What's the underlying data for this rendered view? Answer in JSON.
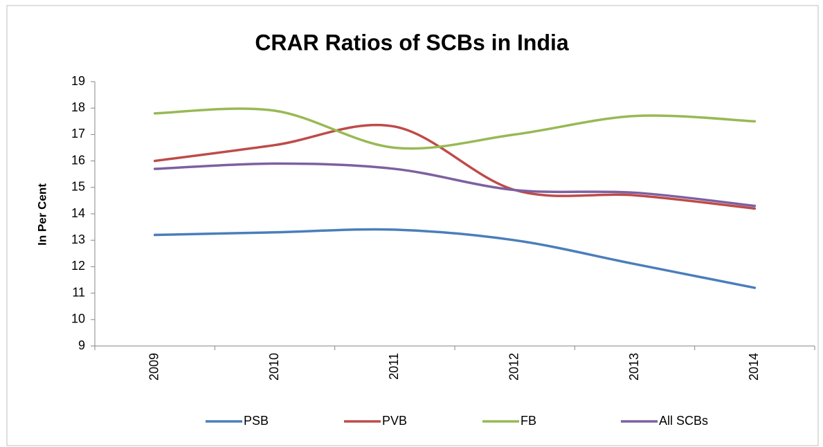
{
  "chart_data": {
    "type": "line",
    "title": "CRAR Ratios of SCBs in India",
    "y_label": "In Per Cent",
    "categories": [
      "2009",
      "2010",
      "2011",
      "2012",
      "2013",
      "2014"
    ],
    "series": [
      {
        "name": "PSB",
        "color": "#4a7ebb",
        "values": [
          13.2,
          13.3,
          13.4,
          13.0,
          12.1,
          11.2
        ]
      },
      {
        "name": "PVB",
        "color": "#be4b48",
        "values": [
          16.0,
          16.6,
          17.3,
          14.9,
          14.7,
          14.2
        ]
      },
      {
        "name": "FB",
        "color": "#98b954",
        "values": [
          17.8,
          17.9,
          16.5,
          17.0,
          17.7,
          17.5
        ]
      },
      {
        "name": "All SCBs",
        "color": "#7d60a0",
        "values": [
          15.7,
          15.9,
          15.7,
          14.9,
          14.8,
          14.3
        ]
      }
    ],
    "ylim": [
      9,
      19
    ],
    "yticks": [
      9,
      10,
      11,
      12,
      13,
      14,
      15,
      16,
      17,
      18,
      19
    ],
    "grid": false,
    "smooth": true,
    "legend": "bottom"
  }
}
